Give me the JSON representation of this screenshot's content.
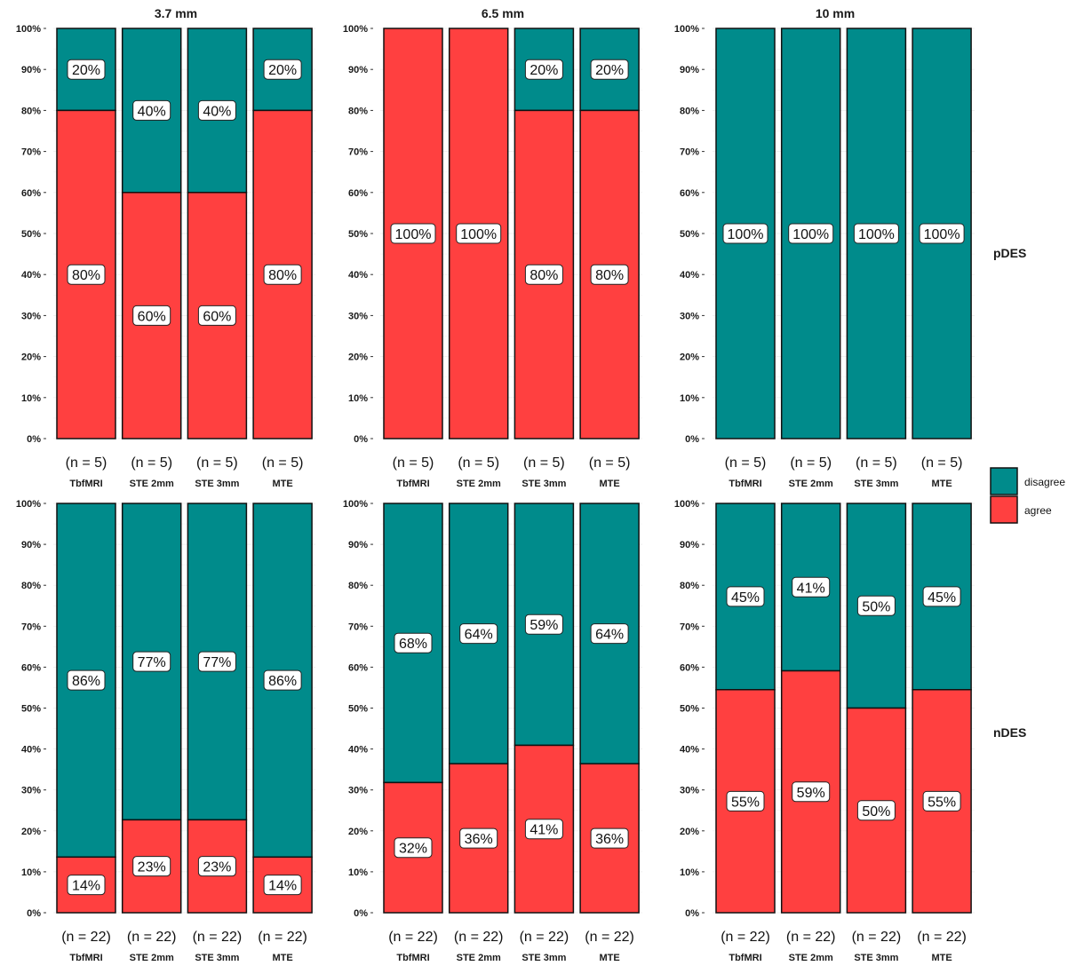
{
  "chart_data": {
    "type": "bar",
    "stacked": true,
    "percent_scale": true,
    "y_ticks": [
      "0%",
      "10%",
      "20%",
      "30%",
      "40%",
      "50%",
      "60%",
      "70%",
      "80%",
      "90%",
      "100%"
    ],
    "ylim": [
      0,
      100
    ],
    "categories": [
      "TbfMRI",
      "STE 2mm",
      "STE 3mm",
      "MTE"
    ],
    "columns": [
      "3.7 mm",
      "6.5 mm",
      "10 mm"
    ],
    "rows": [
      "pDES",
      "nDES"
    ],
    "legend": {
      "position": "right",
      "entries": [
        {
          "label": "disagree",
          "color": "#008B8B"
        },
        {
          "label": "agree",
          "color": "#FF4040"
        }
      ]
    },
    "colors": {
      "agree": "#FF4040",
      "disagree": "#008B8B"
    },
    "panels": [
      {
        "row": "pDES",
        "column": "3.7 mm",
        "n_labels": [
          "(n = 5)",
          "(n = 5)",
          "(n = 5)",
          "(n = 5)"
        ],
        "agree": [
          80,
          60,
          60,
          80
        ],
        "disagree": [
          20,
          40,
          40,
          20
        ],
        "agree_labels": [
          "80%",
          "60%",
          "60%",
          "80%"
        ],
        "disagree_labels": [
          "20%",
          "40%",
          "40%",
          "20%"
        ]
      },
      {
        "row": "pDES",
        "column": "6.5 mm",
        "n_labels": [
          "(n = 5)",
          "(n = 5)",
          "(n = 5)",
          "(n = 5)"
        ],
        "agree": [
          100,
          100,
          80,
          80
        ],
        "disagree": [
          0,
          0,
          20,
          20
        ],
        "agree_labels": [
          "100%",
          "100%",
          "80%",
          "80%"
        ],
        "disagree_labels": [
          "",
          "",
          "20%",
          "20%"
        ]
      },
      {
        "row": "pDES",
        "column": "10 mm",
        "n_labels": [
          "(n = 5)",
          "(n = 5)",
          "(n = 5)",
          "(n = 5)"
        ],
        "agree": [
          0,
          0,
          0,
          0
        ],
        "disagree": [
          100,
          100,
          100,
          100
        ],
        "agree_labels": [
          "",
          "",
          "",
          ""
        ],
        "disagree_labels": [
          "100%",
          "100%",
          "100%",
          "100%"
        ]
      },
      {
        "row": "nDES",
        "column": "3.7 mm",
        "n_labels": [
          "(n = 22)",
          "(n = 22)",
          "(n = 22)",
          "(n = 22)"
        ],
        "agree": [
          13.6,
          22.7,
          22.7,
          13.6
        ],
        "disagree": [
          86.4,
          77.3,
          77.3,
          86.4
        ],
        "agree_labels": [
          "14%",
          "23%",
          "23%",
          "14%"
        ],
        "disagree_labels": [
          "86%",
          "77%",
          "77%",
          "86%"
        ]
      },
      {
        "row": "nDES",
        "column": "6.5 mm",
        "n_labels": [
          "(n = 22)",
          "(n = 22)",
          "(n = 22)",
          "(n = 22)"
        ],
        "agree": [
          31.8,
          36.4,
          40.9,
          36.4
        ],
        "disagree": [
          68.2,
          63.6,
          59.1,
          63.6
        ],
        "agree_labels": [
          "32%",
          "36%",
          "41%",
          "36%"
        ],
        "disagree_labels": [
          "68%",
          "64%",
          "59%",
          "64%"
        ]
      },
      {
        "row": "nDES",
        "column": "10 mm",
        "n_labels": [
          "(n = 22)",
          "(n = 22)",
          "(n = 22)",
          "(n = 22)"
        ],
        "agree": [
          54.5,
          59.1,
          50,
          54.5
        ],
        "disagree": [
          45.5,
          40.9,
          50,
          45.5
        ],
        "agree_labels": [
          "55%",
          "59%",
          "50%",
          "55%"
        ],
        "disagree_labels": [
          "45%",
          "41%",
          "50%",
          "45%"
        ]
      }
    ]
  }
}
